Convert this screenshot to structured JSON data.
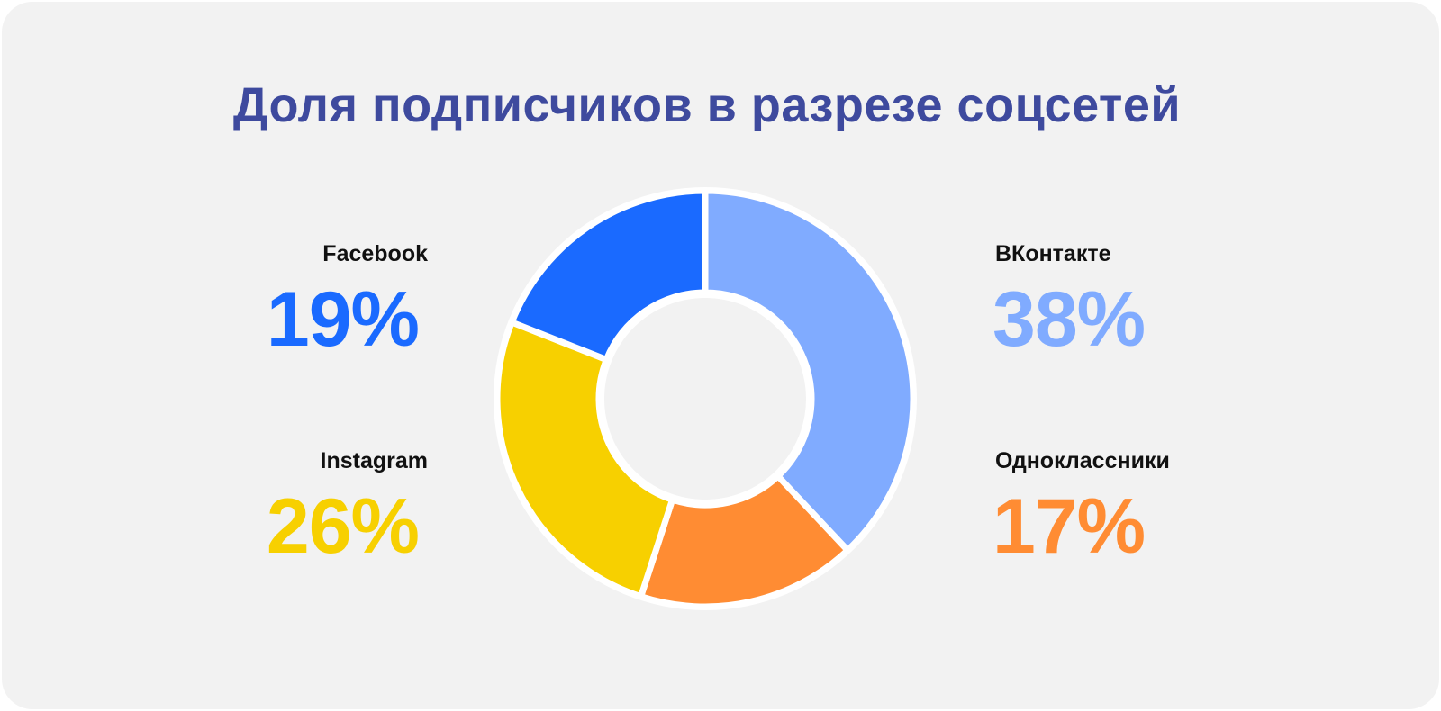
{
  "chart_data": {
    "type": "pie",
    "title": "Доля подписчиков в разрезе соцсетей",
    "slices": [
      {
        "label": "ВКонтакте",
        "value": 38,
        "display": "38%",
        "color": "#80abff"
      },
      {
        "label": "Одноклассники",
        "value": 17,
        "display": "17%",
        "color": "#ff8c33"
      },
      {
        "label": "Instagram",
        "value": 26,
        "display": "26%",
        "color": "#f7d000"
      },
      {
        "label": "Facebook",
        "value": 19,
        "display": "19%",
        "color": "#1a6aff"
      }
    ],
    "legend": "labels positioned around donut (left and right)",
    "donut": true
  }
}
